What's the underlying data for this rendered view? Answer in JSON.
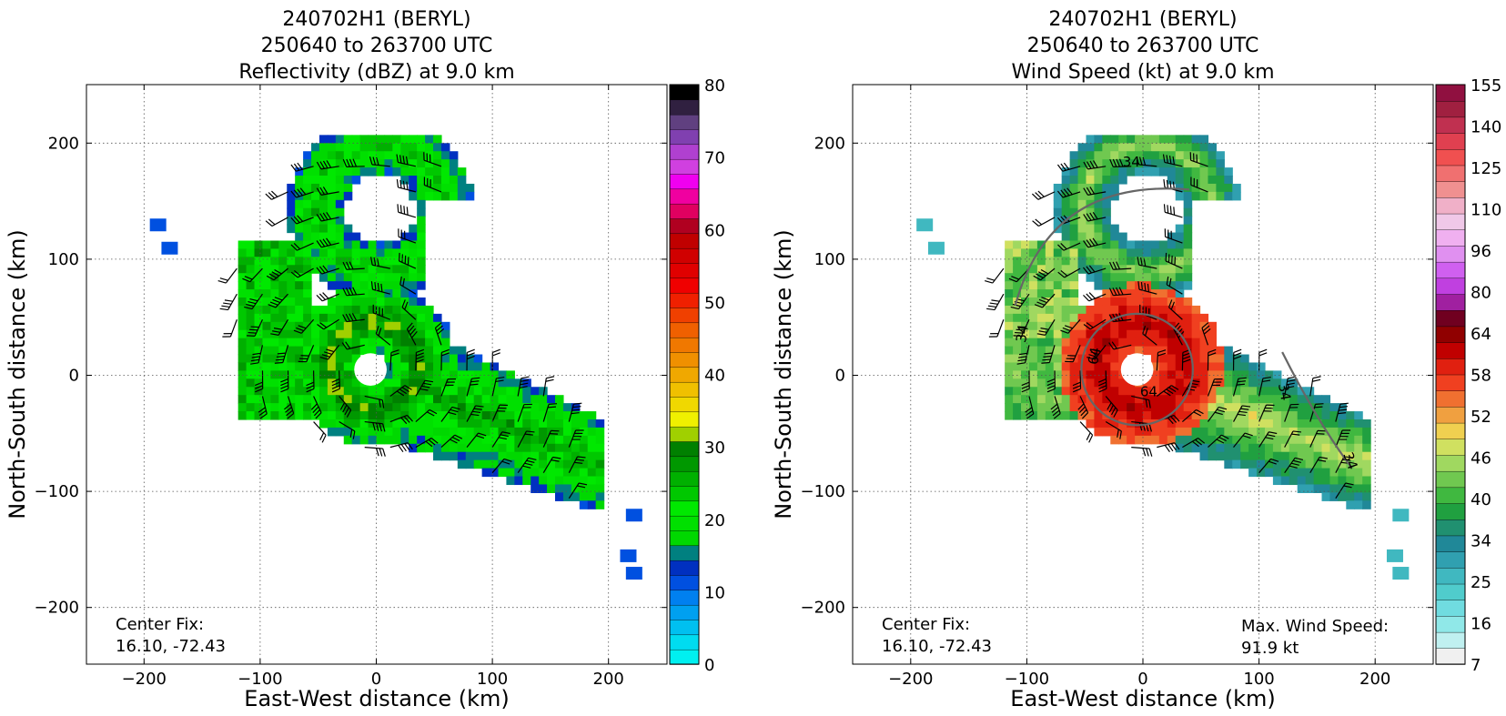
{
  "panels": [
    {
      "id": "reflectivity",
      "title_lines": [
        "240702H1 (BERYL)",
        "250640 to 263700 UTC",
        "Reflectivity (dBZ) at 9.0 km"
      ],
      "xlabel": "East-West distance (km)",
      "ylabel": "North-South distance (km)",
      "center_fix": [
        "Center Fix:",
        "16.10, -72.43"
      ],
      "max_wind": null,
      "colorbar_ticks": [
        "80",
        "70",
        "60",
        "50",
        "40",
        "30",
        "20",
        "10",
        "0"
      ]
    },
    {
      "id": "windspeed",
      "title_lines": [
        "240702H1 (BERYL)",
        "250640 to 263700 UTC",
        "Wind Speed (kt) at 9.0 km"
      ],
      "xlabel": "East-West distance (km)",
      "ylabel": "North-South distance (km)",
      "center_fix": [
        "Center Fix:",
        "16.10, -72.43"
      ],
      "max_wind": [
        "Max. Wind Speed:",
        "91.9 kt"
      ],
      "colorbar_ticks": [
        "155",
        "140",
        "125",
        "110",
        "96",
        "80",
        "64",
        "58",
        "52",
        "46",
        "40",
        "34",
        "25",
        "16",
        "7"
      ]
    }
  ],
  "contour_labels": [
    "34",
    "34",
    "34",
    "34",
    "64",
    "64"
  ],
  "colors": {
    "reflectivity_bar": [
      "#00f0f0",
      "#00dcf0",
      "#00c0f0",
      "#00a0f0",
      "#0080f0",
      "#0050e0",
      "#0030c0",
      "#008080",
      "#00d800",
      "#00e000",
      "#00e800",
      "#00c800",
      "#00b000",
      "#009800",
      "#008000",
      "#a0d000",
      "#f0f000",
      "#f0d800",
      "#f0c000",
      "#f0a800",
      "#f09000",
      "#f07800",
      "#f06000",
      "#f04000",
      "#f02000",
      "#f00000",
      "#e00000",
      "#d00000",
      "#c00000",
      "#b00020",
      "#e00060",
      "#f000a0",
      "#f000f0",
      "#d040e0",
      "#b040d0",
      "#8040b0",
      "#604080",
      "#302040",
      "#000000"
    ],
    "wind_bar": [
      "#f0f0f0",
      "#c0f0f0",
      "#90e8e8",
      "#70dce0",
      "#50cccc",
      "#40b8c0",
      "#30a0b0",
      "#208898",
      "#209070",
      "#20a040",
      "#40b840",
      "#70c850",
      "#a0d860",
      "#d0e060",
      "#f0d050",
      "#f0a040",
      "#f07030",
      "#f04020",
      "#e02010",
      "#c00000",
      "#900000",
      "#700020",
      "#a020a0",
      "#c040e0",
      "#d060f0",
      "#e090f0",
      "#f0b0f0",
      "#f0c8e8",
      "#f0b0c8",
      "#f09090",
      "#f07070",
      "#f05050",
      "#e04050",
      "#c03050",
      "#a02040",
      "#901040"
    ],
    "grid": "#555555",
    "barb": "#000000"
  },
  "chart_data": [
    {
      "type": "heatmap",
      "title": "240702H1 (BERYL) 250640 to 263700 UTC Reflectivity (dBZ) at 9.0 km",
      "xlabel": "East-West distance (km)",
      "ylabel": "North-South distance (km)",
      "xlim": [
        -250,
        250
      ],
      "ylim": [
        -250,
        250
      ],
      "xticks": [
        -200,
        -100,
        0,
        100,
        200
      ],
      "yticks": [
        -200,
        -100,
        0,
        100,
        200
      ],
      "grid": true,
      "colorbar": {
        "label": "dBZ",
        "range": [
          0,
          80
        ],
        "ticks": [
          0,
          10,
          20,
          30,
          40,
          50,
          60,
          70,
          80
        ]
      },
      "center_fix": [
        16.1,
        -72.43
      ],
      "overlay": "wind barbs"
    },
    {
      "type": "heatmap",
      "title": "240702H1 (BERYL) 250640 to 263700 UTC Wind Speed (kt) at 9.0 km",
      "xlabel": "East-West distance (km)",
      "ylabel": "North-South distance (km)",
      "xlim": [
        -250,
        250
      ],
      "ylim": [
        -250,
        250
      ],
      "xticks": [
        -200,
        -100,
        0,
        100,
        200
      ],
      "yticks": [
        -200,
        -100,
        0,
        100,
        200
      ],
      "grid": true,
      "colorbar": {
        "label": "kt",
        "ticks": [
          7,
          16,
          25,
          34,
          40,
          46,
          52,
          58,
          64,
          80,
          96,
          110,
          125,
          140,
          155
        ]
      },
      "contours": [
        34,
        64
      ],
      "center_fix": [
        16.1,
        -72.43
      ],
      "max_wind_speed_kt": 91.9,
      "overlay": "wind barbs"
    }
  ]
}
